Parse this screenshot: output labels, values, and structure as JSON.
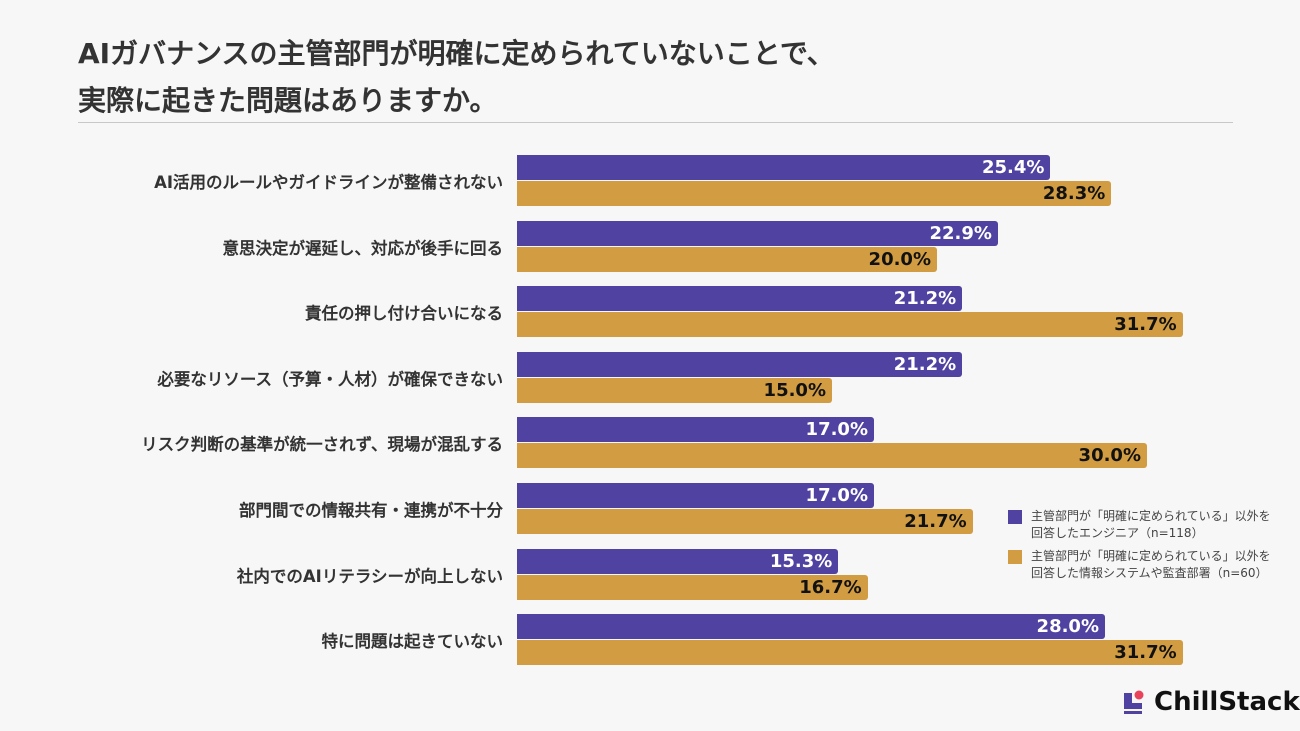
{
  "title": {
    "line1": "AIガバナンスの主管部門が明確に定められていないことで、",
    "line2": "実際に起きた問題はありますか。"
  },
  "chart_data": {
    "type": "bar",
    "orientation": "horizontal",
    "title": "AIガバナンスの主管部門が明確に定められていないことで、実際に起きた問題はありますか。",
    "unit": "%",
    "categories": [
      "AI活用のルールやガイドラインが整備されない",
      "意思決定が遅延し、対応が後手に回る",
      "責任の押し付け合いになる",
      "必要なリソース（予算・人材）が確保できない",
      "リスク判断の基準が統一されず、現場が混乱する",
      "部門間での情報共有・連携が不十分",
      "社内でのAIリテラシーが向上しない",
      "特に問題は起きていない"
    ],
    "series": [
      {
        "name": "主管部門が「明確に定められている」以外を回答したエンジニア（n=118）",
        "color": "#4f42a0",
        "label_color": "#ffffff",
        "values": [
          25.4,
          22.9,
          21.2,
          21.2,
          17.0,
          17.0,
          15.3,
          28.0
        ]
      },
      {
        "name": "主管部門が「明確に定められている」以外を回答した情報システムや監査部署（n=60）",
        "color": "#d29c42",
        "label_color": "#111111",
        "values": [
          28.3,
          20.0,
          31.7,
          15.0,
          30.0,
          21.7,
          16.7,
          31.7
        ]
      }
    ],
    "legend_lines": [
      [
        "主管部門が「明確に定められている」以外を",
        "回答したエンジニア（n=118）"
      ],
      [
        "主管部門が「明確に定められている」以外を",
        "回答した情報システムや監査部署（n=60）"
      ]
    ],
    "legend_position": "bottom-right",
    "grid": false
  },
  "logo": {
    "text": "ChillStack"
  }
}
